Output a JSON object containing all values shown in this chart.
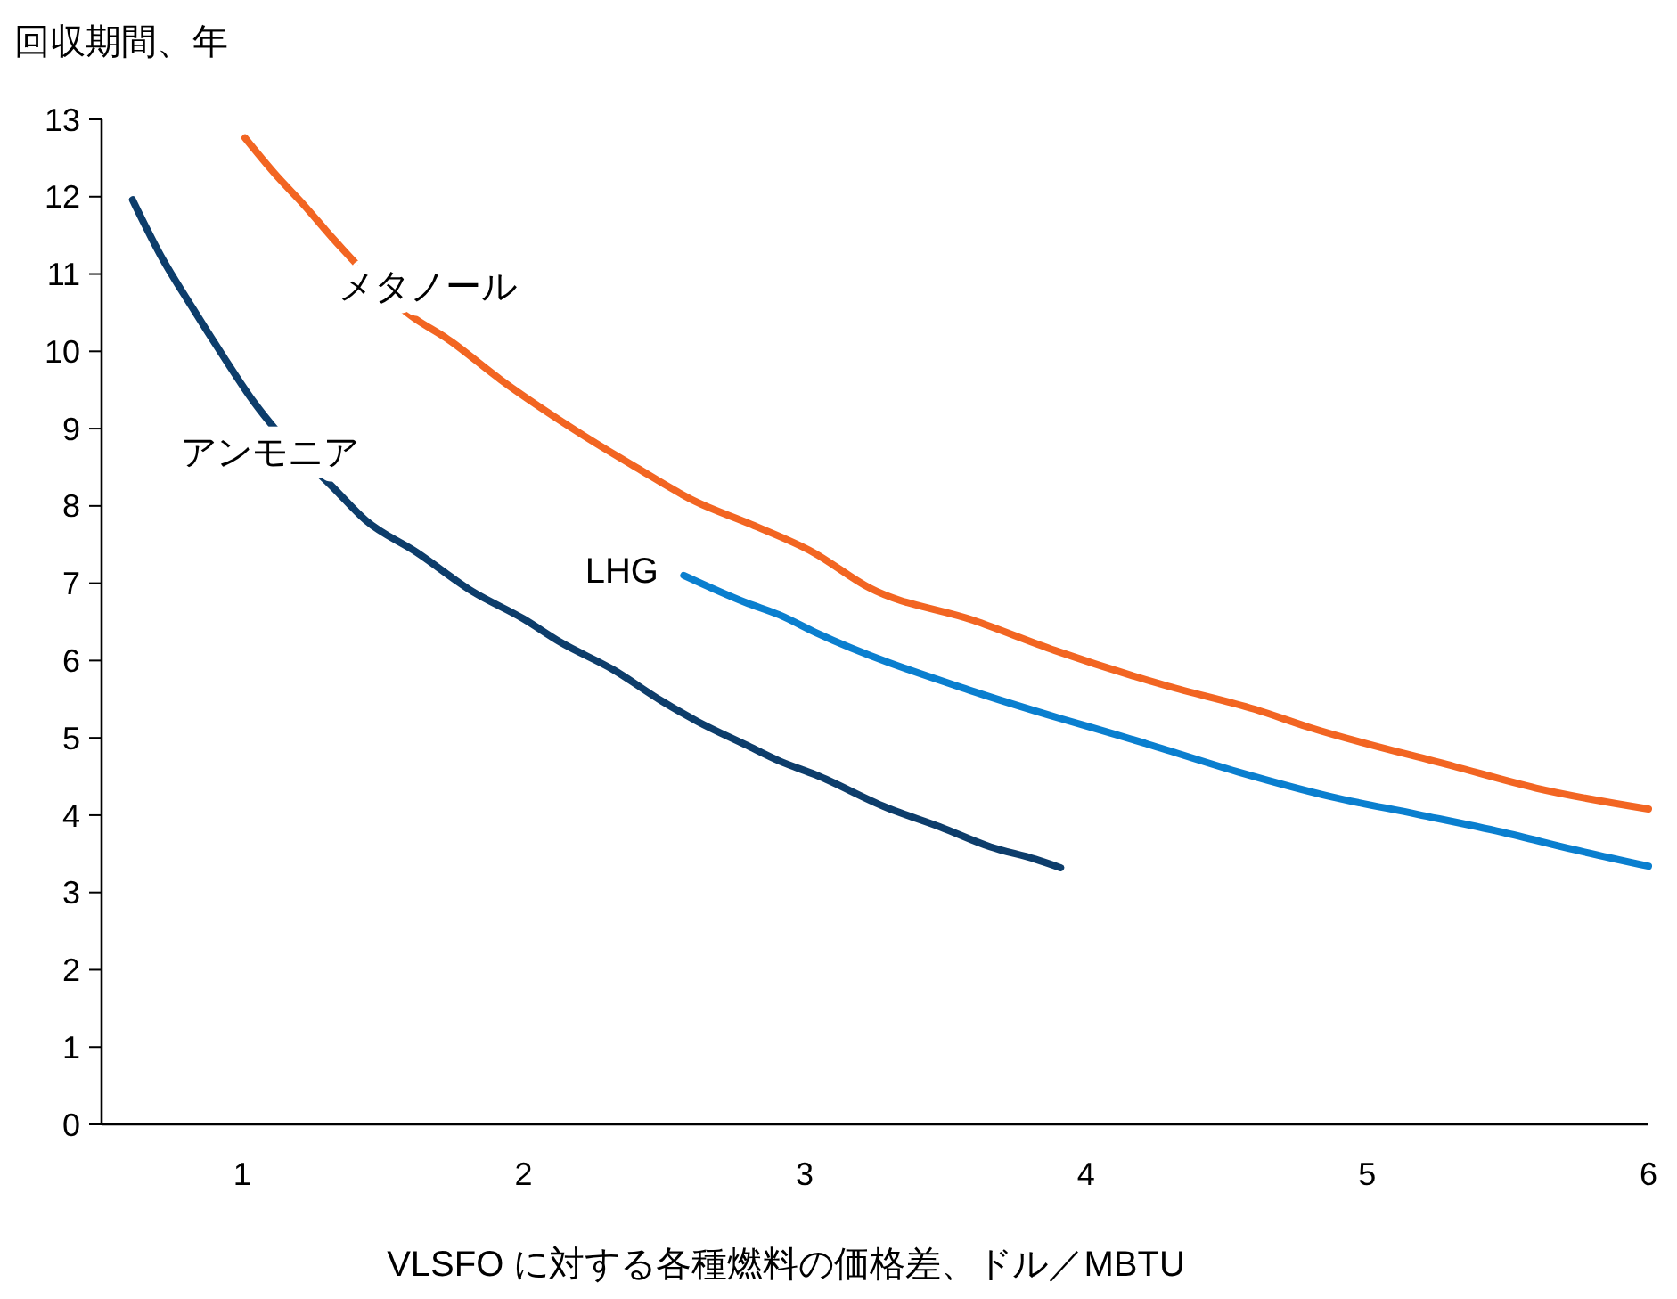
{
  "chart_data": {
    "type": "line",
    "ylabel": "回収期間、年",
    "xlabel": "VLSFO に対する各種燃料の価格差、ドル／MBTU",
    "xlim": [
      0.5,
      6
    ],
    "xticks": [
      1,
      2,
      3,
      4,
      5,
      6
    ],
    "ylim": [
      0,
      13
    ],
    "yticks": [
      0,
      1,
      2,
      3,
      4,
      5,
      6,
      7,
      8,
      9,
      10,
      11,
      12,
      13
    ],
    "grid": false,
    "legend": false,
    "series": [
      {
        "name": "メタノール",
        "color": "#f26522",
        "x": [
          1.01,
          1.12,
          1.22,
          1.32,
          1.36,
          1.6,
          1.73,
          1.92,
          2.21,
          2.4,
          2.61,
          2.81,
          3.03,
          3.23,
          3.6,
          3.89,
          4.29,
          4.6,
          4.79,
          5.31,
          5.6,
          6.0
        ],
        "values": [
          12.76,
          12.28,
          11.89,
          11.47,
          11.31,
          10.46,
          10.16,
          9.63,
          8.92,
          8.5,
          8.06,
          7.76,
          7.4,
          6.94,
          6.52,
          6.13,
          5.67,
          5.37,
          5.14,
          4.63,
          4.35,
          4.08
        ]
      },
      {
        "name": "アンモニア",
        "color": "#0d3d6b",
        "x": [
          0.61,
          0.71,
          0.82,
          0.93,
          1.04,
          1.13,
          1.32,
          1.44,
          1.62,
          1.82,
          2.0,
          2.13,
          2.32,
          2.49,
          2.62,
          2.79,
          2.91,
          3.04,
          3.29,
          3.48,
          3.66,
          3.82,
          3.91
        ],
        "values": [
          11.96,
          11.24,
          10.58,
          9.95,
          9.35,
          8.94,
          8.25,
          7.81,
          7.4,
          6.89,
          6.54,
          6.24,
          5.88,
          5.48,
          5.21,
          4.91,
          4.7,
          4.52,
          4.1,
          3.85,
          3.59,
          3.43,
          3.32
        ]
      },
      {
        "name": "LHG",
        "color": "#0a7fcf",
        "x": [
          2.57,
          2.79,
          2.91,
          3.04,
          3.6,
          3.91,
          4.1,
          4.21,
          4.54,
          4.87,
          5.18,
          5.48,
          5.74,
          6.0
        ],
        "values": [
          7.1,
          6.75,
          6.59,
          6.36,
          5.6,
          5.25,
          5.05,
          4.93,
          4.56,
          4.24,
          4.01,
          3.78,
          3.55,
          3.34
        ]
      }
    ]
  }
}
